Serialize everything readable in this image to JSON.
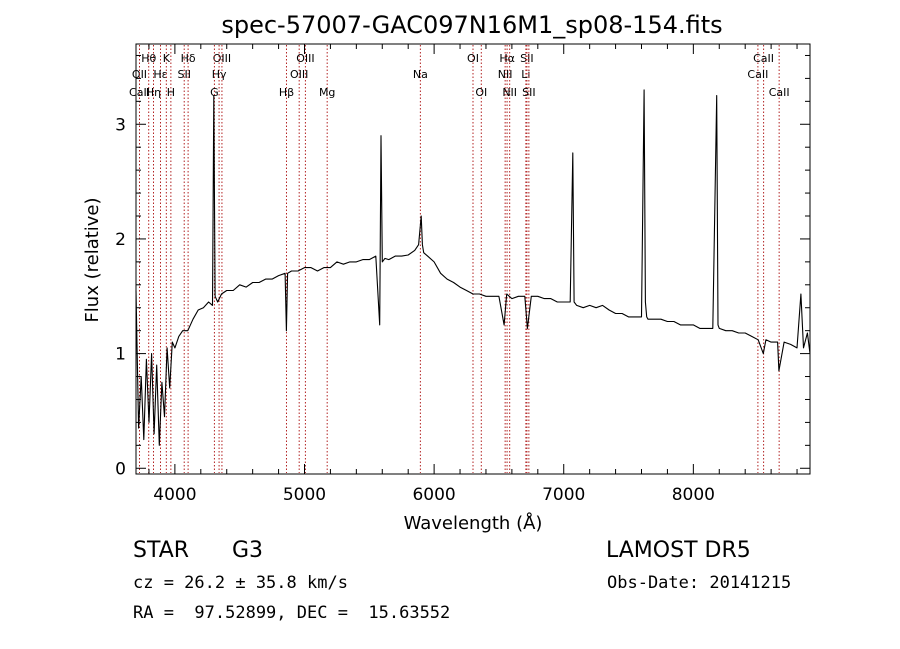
{
  "chart_data": {
    "type": "line",
    "title": "spec-57007-GAC097N16M1_sp08-154.fits",
    "xlabel": "Wavelength (Å)",
    "ylabel": "Flux (relative)",
    "xlim": [
      3700,
      8900
    ],
    "ylim": [
      -0.05,
      3.7
    ],
    "xticks": [
      4000,
      5000,
      6000,
      7000,
      8000
    ],
    "yticks": [
      0,
      1,
      2,
      3
    ],
    "series": [
      {
        "color": "#000000",
        "x": [
          3700,
          3720,
          3740,
          3760,
          3780,
          3800,
          3820,
          3840,
          3860,
          3880,
          3900,
          3920,
          3940,
          3960,
          3980,
          4000,
          4030,
          4060,
          4100,
          4140,
          4180,
          4220,
          4260,
          4290,
          4300,
          4310,
          4330,
          4360,
          4400,
          4450,
          4500,
          4550,
          4600,
          4650,
          4700,
          4750,
          4800,
          4850,
          4860,
          4870,
          4900,
          4950,
          5000,
          5050,
          5100,
          5150,
          5200,
          5250,
          5300,
          5350,
          5400,
          5450,
          5500,
          5550,
          5580,
          5590,
          5600,
          5620,
          5650,
          5700,
          5750,
          5800,
          5850,
          5880,
          5900,
          5910,
          5920,
          5950,
          6000,
          6050,
          6100,
          6150,
          6200,
          6250,
          6300,
          6350,
          6400,
          6450,
          6500,
          6540,
          6560,
          6580,
          6600,
          6650,
          6700,
          6720,
          6750,
          6800,
          6850,
          6900,
          6950,
          7000,
          7050,
          7070,
          7080,
          7100,
          7150,
          7200,
          7250,
          7300,
          7350,
          7400,
          7450,
          7500,
          7550,
          7600,
          7620,
          7630,
          7640,
          7650,
          7700,
          7750,
          7800,
          7850,
          7900,
          7950,
          8000,
          8050,
          8100,
          8150,
          8180,
          8190,
          8200,
          8250,
          8300,
          8350,
          8400,
          8450,
          8500,
          8540,
          8560,
          8600,
          8650,
          8660,
          8700,
          8750,
          8800,
          8830,
          8850,
          8880,
          8900
        ],
        "y": [
          1.55,
          0.35,
          0.8,
          0.25,
          0.95,
          0.4,
          1.0,
          0.3,
          0.9,
          0.2,
          0.75,
          0.45,
          1.05,
          0.7,
          1.1,
          1.05,
          1.15,
          1.2,
          1.2,
          1.3,
          1.38,
          1.4,
          1.45,
          1.42,
          3.25,
          1.5,
          1.45,
          1.52,
          1.55,
          1.55,
          1.6,
          1.58,
          1.62,
          1.62,
          1.65,
          1.65,
          1.68,
          1.7,
          1.2,
          1.7,
          1.72,
          1.72,
          1.75,
          1.75,
          1.72,
          1.75,
          1.75,
          1.8,
          1.78,
          1.8,
          1.8,
          1.82,
          1.82,
          1.85,
          1.25,
          2.9,
          1.8,
          1.83,
          1.82,
          1.85,
          1.85,
          1.86,
          1.9,
          1.95,
          2.2,
          1.95,
          1.88,
          1.85,
          1.8,
          1.7,
          1.65,
          1.62,
          1.58,
          1.55,
          1.52,
          1.52,
          1.5,
          1.5,
          1.5,
          1.25,
          1.52,
          1.5,
          1.48,
          1.5,
          1.5,
          1.22,
          1.5,
          1.5,
          1.48,
          1.48,
          1.45,
          1.45,
          1.45,
          2.75,
          1.45,
          1.42,
          1.4,
          1.42,
          1.4,
          1.42,
          1.38,
          1.35,
          1.35,
          1.32,
          1.32,
          1.32,
          3.3,
          1.45,
          1.32,
          1.3,
          1.3,
          1.3,
          1.28,
          1.28,
          1.25,
          1.25,
          1.25,
          1.22,
          1.22,
          1.22,
          3.25,
          1.25,
          1.22,
          1.2,
          1.2,
          1.18,
          1.18,
          1.15,
          1.12,
          1.0,
          1.12,
          1.1,
          1.1,
          0.85,
          1.1,
          1.08,
          1.05,
          1.52,
          1.05,
          1.18,
          1.0
        ]
      }
    ],
    "line_markers": [
      {
        "label": "Hθ",
        "x": 3798,
        "row": 1
      },
      {
        "label": "OII",
        "x": 3727,
        "row": 2
      },
      {
        "label": "CaII",
        "x": 3727,
        "row": 3
      },
      {
        "label": "Hε",
        "x": 3889,
        "row": 2
      },
      {
        "label": "Hη",
        "x": 3835,
        "row": 3
      },
      {
        "label": "K",
        "x": 3934,
        "row": 1
      },
      {
        "label": "H",
        "x": 3969,
        "row": 3
      },
      {
        "label": "Hδ",
        "x": 4102,
        "row": 1
      },
      {
        "label": "SII",
        "x": 4072,
        "row": 2
      },
      {
        "label": "OIII",
        "x": 4363,
        "row": 1
      },
      {
        "label": "Hγ",
        "x": 4341,
        "row": 2
      },
      {
        "label": "G",
        "x": 4305,
        "row": 3
      },
      {
        "label": "OIII",
        "x": 5007,
        "row": 1
      },
      {
        "label": "OIII",
        "x": 4959,
        "row": 2
      },
      {
        "label": "Hβ",
        "x": 4861,
        "row": 3
      },
      {
        "label": "Mg",
        "x": 5175,
        "row": 3
      },
      {
        "label": "Na",
        "x": 5894,
        "row": 2
      },
      {
        "label": "OI",
        "x": 6300,
        "row": 1
      },
      {
        "label": "OI",
        "x": 6364,
        "row": 3
      },
      {
        "label": "Hα",
        "x": 6563,
        "row": 1
      },
      {
        "label": "SII",
        "x": 6716,
        "row": 1
      },
      {
        "label": "NII",
        "x": 6548,
        "row": 2
      },
      {
        "label": "Li",
        "x": 6708,
        "row": 2
      },
      {
        "label": "NII",
        "x": 6583,
        "row": 3
      },
      {
        "label": "SII",
        "x": 6731,
        "row": 3
      },
      {
        "label": "CaII",
        "x": 8542,
        "row": 1
      },
      {
        "label": "CaII",
        "x": 8498,
        "row": 2
      },
      {
        "label": "CaII",
        "x": 8662,
        "row": 3
      }
    ],
    "marker_color": "#b22222"
  },
  "info": {
    "class": "STAR",
    "subclass": "G3",
    "survey": "LAMOST DR5",
    "cz": "cz = 26.2 ± 35.8 km/s",
    "obs_date": "Obs-Date: 20141215",
    "radec": "RA =  97.52899, DEC =  15.63552"
  }
}
